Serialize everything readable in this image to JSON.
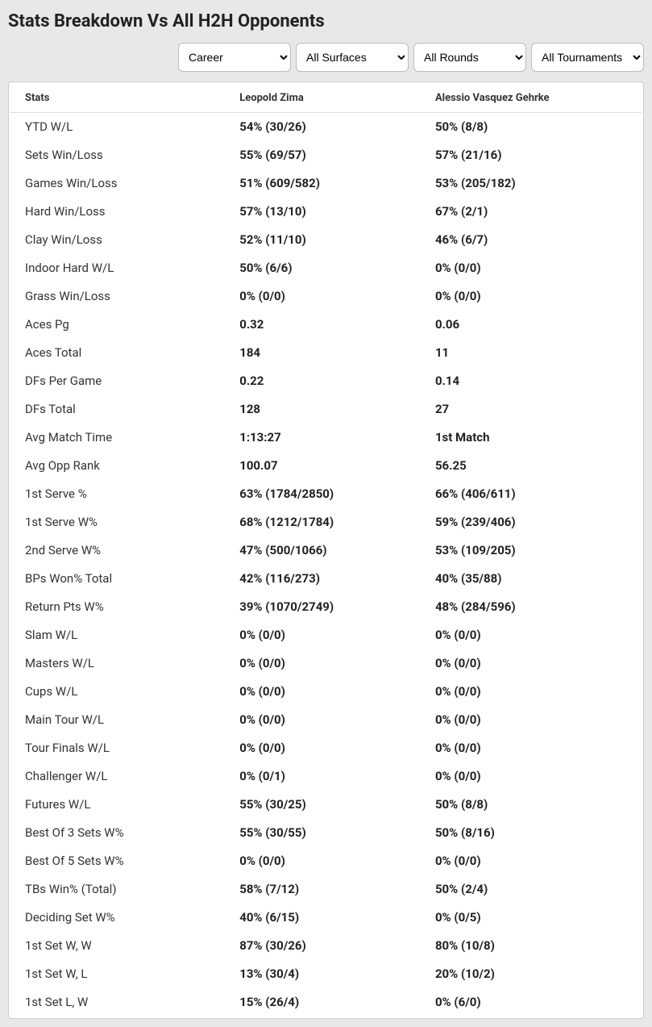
{
  "title": "Stats Breakdown Vs All H2H Opponents",
  "filters": {
    "period": "Career",
    "surface": "All Surfaces",
    "round": "All Rounds",
    "tournament": "All Tournaments"
  },
  "headers": {
    "stats": "Stats",
    "player1": "Leopold Zima",
    "player2": "Alessio Vasquez Gehrke"
  },
  "rows": [
    {
      "label": "YTD W/L",
      "p1": "54% (30/26)",
      "p2": "50% (8/8)"
    },
    {
      "label": "Sets Win/Loss",
      "p1": "55% (69/57)",
      "p2": "57% (21/16)"
    },
    {
      "label": "Games Win/Loss",
      "p1": "51% (609/582)",
      "p2": "53% (205/182)"
    },
    {
      "label": "Hard Win/Loss",
      "p1": "57% (13/10)",
      "p2": "67% (2/1)"
    },
    {
      "label": "Clay Win/Loss",
      "p1": "52% (11/10)",
      "p2": "46% (6/7)"
    },
    {
      "label": "Indoor Hard W/L",
      "p1": "50% (6/6)",
      "p2": "0% (0/0)"
    },
    {
      "label": "Grass Win/Loss",
      "p1": "0% (0/0)",
      "p2": "0% (0/0)"
    },
    {
      "label": "Aces Pg",
      "p1": "0.32",
      "p2": "0.06"
    },
    {
      "label": "Aces Total",
      "p1": "184",
      "p2": "11"
    },
    {
      "label": "DFs Per Game",
      "p1": "0.22",
      "p2": "0.14"
    },
    {
      "label": "DFs Total",
      "p1": "128",
      "p2": "27"
    },
    {
      "label": "Avg Match Time",
      "p1": "1:13:27",
      "p2": "1st Match"
    },
    {
      "label": "Avg Opp Rank",
      "p1": "100.07",
      "p2": "56.25"
    },
    {
      "label": "1st Serve %",
      "p1": "63% (1784/2850)",
      "p2": "66% (406/611)"
    },
    {
      "label": "1st Serve W%",
      "p1": "68% (1212/1784)",
      "p2": "59% (239/406)"
    },
    {
      "label": "2nd Serve W%",
      "p1": "47% (500/1066)",
      "p2": "53% (109/205)"
    },
    {
      "label": "BPs Won% Total",
      "p1": "42% (116/273)",
      "p2": "40% (35/88)"
    },
    {
      "label": "Return Pts W%",
      "p1": "39% (1070/2749)",
      "p2": "48% (284/596)"
    },
    {
      "label": "Slam W/L",
      "p1": "0% (0/0)",
      "p2": "0% (0/0)"
    },
    {
      "label": "Masters W/L",
      "p1": "0% (0/0)",
      "p2": "0% (0/0)"
    },
    {
      "label": "Cups W/L",
      "p1": "0% (0/0)",
      "p2": "0% (0/0)"
    },
    {
      "label": "Main Tour W/L",
      "p1": "0% (0/0)",
      "p2": "0% (0/0)"
    },
    {
      "label": "Tour Finals W/L",
      "p1": "0% (0/0)",
      "p2": "0% (0/0)"
    },
    {
      "label": "Challenger W/L",
      "p1": "0% (0/1)",
      "p2": "0% (0/0)"
    },
    {
      "label": "Futures W/L",
      "p1": "55% (30/25)",
      "p2": "50% (8/8)"
    },
    {
      "label": "Best Of 3 Sets W%",
      "p1": "55% (30/55)",
      "p2": "50% (8/16)"
    },
    {
      "label": "Best Of 5 Sets W%",
      "p1": "0% (0/0)",
      "p2": "0% (0/0)"
    },
    {
      "label": "TBs Win% (Total)",
      "p1": "58% (7/12)",
      "p2": "50% (2/4)"
    },
    {
      "label": "Deciding Set W%",
      "p1": "40% (6/15)",
      "p2": "0% (0/5)"
    },
    {
      "label": "1st Set W, W",
      "p1": "87% (30/26)",
      "p2": "80% (10/8)"
    },
    {
      "label": "1st Set W, L",
      "p1": "13% (30/4)",
      "p2": "20% (10/2)"
    },
    {
      "label": "1st Set L, W",
      "p1": "15% (26/4)",
      "p2": "0% (6/0)"
    }
  ]
}
